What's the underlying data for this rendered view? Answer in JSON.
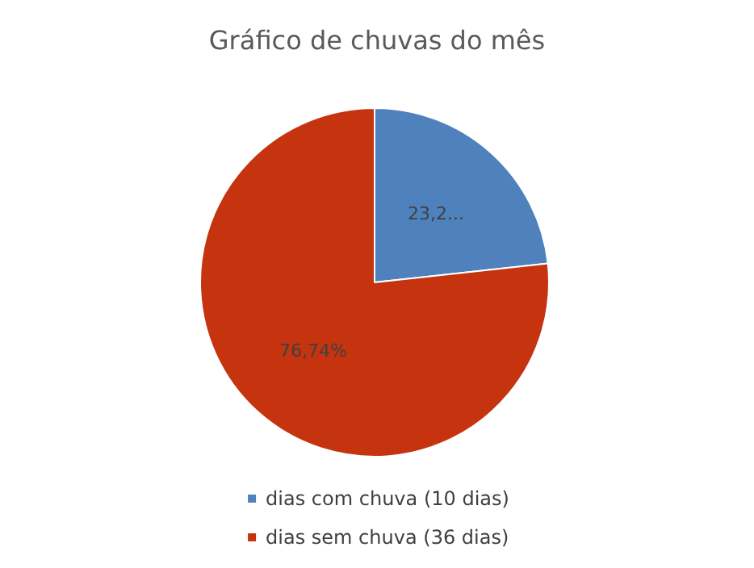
{
  "chart_data": {
    "type": "pie",
    "title": "Gráfico de chuvas do mês",
    "categories": [
      "dias com chuva (10 dias)",
      "dias sem chuva (36 dias)"
    ],
    "values": [
      23.26,
      76.74
    ],
    "colors": [
      "#4f81bd",
      "#c5330f"
    ],
    "value_labels": [
      "23,2...",
      "76,74%"
    ],
    "legend": "bottom"
  }
}
